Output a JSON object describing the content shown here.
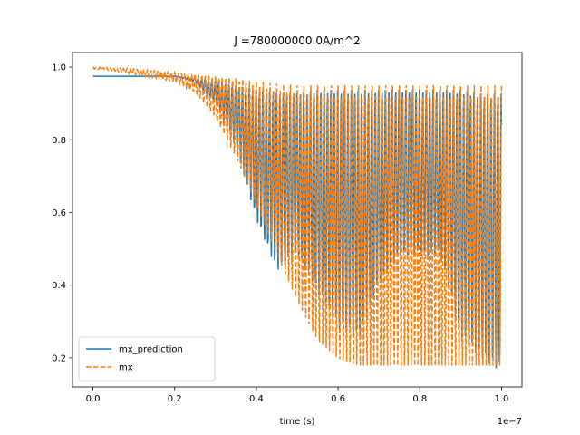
{
  "chart_data": {
    "type": "line",
    "title": "J =780000000.0A/m^2",
    "xlabel": "time (s)",
    "ylabel": "",
    "x_offset_label": "1e−7",
    "xlim": [
      -0.05,
      1.05
    ],
    "ylim": [
      0.12,
      1.04
    ],
    "x_scale_note": "x values in units of 1e-7 s",
    "xticks": [
      0.0,
      0.2,
      0.4,
      0.6,
      0.8,
      1.0
    ],
    "xtick_labels": [
      "0.0",
      "0.2",
      "0.4",
      "0.6",
      "0.8",
      "1.0"
    ],
    "yticks": [
      0.2,
      0.4,
      0.6,
      0.8,
      1.0
    ],
    "ytick_labels": [
      "0.2",
      "0.4",
      "0.6",
      "0.8",
      "1.0"
    ],
    "grid": false,
    "legend_position": "lower-left",
    "series": [
      {
        "name": "mx_prediction",
        "color": "#1f77b4",
        "style": "solid",
        "x": [
          0.0,
          0.05,
          0.1,
          0.15,
          0.2,
          0.25,
          0.3,
          0.35,
          0.4,
          0.45,
          0.5,
          0.55,
          0.6,
          0.65,
          0.7,
          0.75,
          0.8,
          0.85,
          0.9,
          0.95,
          1.0
        ],
        "upper": [
          0.975,
          0.975,
          0.975,
          0.975,
          0.975,
          0.97,
          0.96,
          0.95,
          0.94,
          0.93,
          0.93,
          0.94,
          0.94,
          0.94,
          0.94,
          0.94,
          0.94,
          0.94,
          0.94,
          0.93,
          0.93
        ],
        "lower": [
          0.975,
          0.975,
          0.975,
          0.975,
          0.975,
          0.96,
          0.9,
          0.78,
          0.58,
          0.44,
          0.48,
          0.38,
          0.28,
          0.25,
          0.4,
          0.48,
          0.48,
          0.48,
          0.25,
          0.2,
          0.16
        ]
      },
      {
        "name": "mx",
        "color": "#ff7f0e",
        "style": "dashed",
        "x": [
          0.0,
          0.05,
          0.1,
          0.15,
          0.2,
          0.25,
          0.3,
          0.35,
          0.4,
          0.45,
          0.5,
          0.55,
          0.6,
          0.65,
          0.7,
          0.75,
          0.8,
          0.85,
          0.9,
          0.95,
          1.0
        ],
        "upper": [
          1.0,
          0.998,
          0.995,
          0.99,
          0.985,
          0.98,
          0.975,
          0.97,
          0.96,
          0.955,
          0.95,
          0.95,
          0.95,
          0.95,
          0.95,
          0.95,
          0.95,
          0.95,
          0.95,
          0.95,
          0.95
        ],
        "lower": [
          0.995,
          0.99,
          0.98,
          0.97,
          0.96,
          0.93,
          0.86,
          0.75,
          0.62,
          0.48,
          0.35,
          0.24,
          0.19,
          0.17,
          0.17,
          0.17,
          0.17,
          0.17,
          0.17,
          0.17,
          0.17
        ]
      }
    ]
  }
}
